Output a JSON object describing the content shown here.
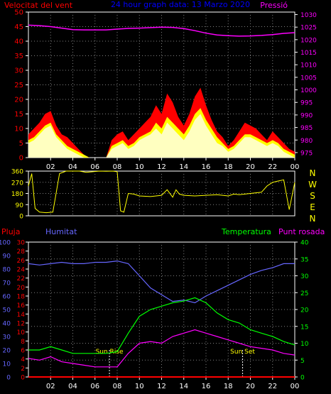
{
  "page": {
    "background": "#000000"
  },
  "chart_data": [
    {
      "type": "line",
      "title": "24 hour graph data: 13 Marzo 2020",
      "left_axis_label": "Velocitat del vent",
      "right_axis_label": "Pressió",
      "left_ticks": [
        "0",
        "5",
        "10",
        "15",
        "20",
        "25",
        "30",
        "35",
        "40",
        "45",
        "50"
      ],
      "right_ticks": [
        "975",
        "980",
        "985",
        "990",
        "995",
        "1000",
        "1005",
        "1010",
        "1015",
        "1020",
        "1025",
        "1030"
      ],
      "x_ticks": [
        "02",
        "04",
        "06",
        "08",
        "10",
        "12",
        "14",
        "16",
        "18",
        "20",
        "22",
        "00"
      ],
      "ylim_left": [
        0,
        50
      ],
      "ylim_right": [
        973,
        1031
      ],
      "xlim": [
        0,
        24
      ],
      "grid": true,
      "colors": {
        "pressure": "#ff00ff",
        "gust": "#ff0000",
        "average": "#ffff00",
        "speed": "#ffffc0",
        "left_axis": "#ff0000",
        "right_axis": "#ff00ff",
        "title": "#0000ff"
      },
      "series": [
        {
          "kind": "pressure",
          "x": [
            0,
            1,
            2,
            3,
            4,
            5,
            6,
            7,
            8,
            9,
            10,
            11,
            12,
            13,
            14,
            15,
            16,
            17,
            18,
            19,
            20,
            21,
            22,
            23,
            24
          ],
          "values": [
            1025.8,
            1025.6,
            1025.2,
            1024.6,
            1024.0,
            1023.9,
            1023.9,
            1023.9,
            1024.2,
            1024.5,
            1024.6,
            1024.8,
            1025.0,
            1024.9,
            1024.4,
            1023.6,
            1022.6,
            1021.9,
            1021.6,
            1021.4,
            1021.5,
            1021.7,
            1022.0,
            1022.5,
            1022.8
          ]
        },
        {
          "kind": "gust",
          "x": [
            0,
            0.5,
            1,
            1.5,
            2,
            2.5,
            3,
            3.5,
            4,
            4.5,
            5,
            5.5,
            6,
            6.5,
            7,
            7.5,
            8,
            8.5,
            9,
            9.5,
            10,
            10.5,
            11,
            11.5,
            12,
            12.5,
            13,
            13.5,
            14,
            14.5,
            15,
            15.5,
            16,
            16.5,
            17,
            17.5,
            18,
            18.5,
            19,
            19.5,
            20,
            20.5,
            21,
            21.5,
            22,
            22.5,
            23,
            23.5,
            24
          ],
          "values": [
            8,
            10,
            12,
            15,
            16,
            11,
            8,
            7,
            5,
            3,
            1,
            0,
            0,
            0,
            0,
            6,
            8,
            9,
            6,
            8,
            10,
            12,
            14,
            18,
            15,
            22,
            19,
            14,
            11,
            15,
            21,
            24,
            18,
            13,
            9,
            7,
            4,
            6,
            9,
            12,
            11,
            10,
            8,
            6,
            9,
            7,
            5,
            3,
            2
          ]
        },
        {
          "kind": "average",
          "x": [
            0,
            0.5,
            1,
            1.5,
            2,
            2.5,
            3,
            3.5,
            4,
            4.5,
            5,
            5.5,
            6,
            6.5,
            7,
            7.5,
            8,
            8.5,
            9,
            9.5,
            10,
            10.5,
            11,
            11.5,
            12,
            12.5,
            13,
            13.5,
            14,
            14.5,
            15,
            15.5,
            16,
            16.5,
            17,
            17.5,
            18,
            18.5,
            19,
            19.5,
            20,
            20.5,
            21,
            21.5,
            22,
            22.5,
            23,
            23.5,
            24
          ],
          "values": [
            6,
            7,
            9,
            11,
            12,
            8,
            6,
            4,
            3,
            2,
            1,
            0,
            0,
            0,
            0,
            4,
            5,
            6,
            4,
            5,
            7,
            8,
            9,
            12,
            10,
            14,
            12,
            10,
            8,
            11,
            15,
            17,
            13,
            10,
            7,
            5,
            3,
            4,
            6,
            8,
            8,
            7,
            6,
            5,
            6,
            5,
            3,
            2,
            1
          ]
        },
        {
          "kind": "speed",
          "x": [
            0,
            0.5,
            1,
            1.5,
            2,
            2.5,
            3,
            3.5,
            4,
            4.5,
            5,
            5.5,
            6,
            6.5,
            7,
            7.5,
            8,
            8.5,
            9,
            9.5,
            10,
            10.5,
            11,
            11.5,
            12,
            12.5,
            13,
            13.5,
            14,
            14.5,
            15,
            15.5,
            16,
            16.5,
            17,
            17.5,
            18,
            18.5,
            19,
            19.5,
            20,
            20.5,
            21,
            21.5,
            22,
            22.5,
            23,
            23.5,
            24
          ],
          "values": [
            5,
            6,
            8,
            10,
            11,
            7,
            5,
            3,
            2,
            1,
            0,
            0,
            0,
            0,
            0,
            3,
            4,
            5,
            3,
            4,
            6,
            7,
            8,
            10,
            8,
            12,
            10,
            8,
            6,
            9,
            13,
            15,
            11,
            8,
            5,
            4,
            2,
            3,
            5,
            7,
            7,
            6,
            5,
            4,
            5,
            4,
            2,
            1,
            0
          ]
        }
      ]
    },
    {
      "type": "line",
      "right_labels": [
        "N",
        "W",
        "S",
        "E",
        "N"
      ],
      "left_ticks": [
        "0",
        "90",
        "180",
        "270",
        "360"
      ],
      "ylim": [
        0,
        360
      ],
      "xlim": [
        0,
        24
      ],
      "grid": true,
      "colors": {
        "direction": "#ffff00",
        "axis": "#ffff00"
      },
      "series": [
        {
          "kind": "direction",
          "x": [
            0,
            0.3,
            0.6,
            1.0,
            1.6,
            2.2,
            2.8,
            3.4,
            4.0,
            4.6,
            5.2,
            5.8,
            6.4,
            7.0,
            7.6,
            8.0,
            8.3,
            8.6,
            9.0,
            9.5,
            10,
            11,
            12,
            12.5,
            13,
            13.3,
            13.6,
            14,
            15,
            16,
            17,
            18,
            18.5,
            19,
            20,
            21,
            21.5,
            22,
            22.5,
            23,
            23.5,
            24
          ],
          "values": [
            240,
            340,
            60,
            30,
            25,
            30,
            340,
            360,
            360,
            360,
            350,
            355,
            360,
            358,
            360,
            355,
            40,
            30,
            180,
            175,
            160,
            155,
            165,
            210,
            150,
            210,
            175,
            165,
            160,
            165,
            170,
            160,
            175,
            170,
            180,
            190,
            240,
            270,
            280,
            290,
            50,
            270
          ]
        }
      ]
    },
    {
      "type": "line",
      "left_axis_label": "Pluja",
      "left_axis_label2": "Humitat",
      "right_axis_label": "Temperatura",
      "right_axis_label2": "Punt rosada",
      "humidity_ticks": [
        "0",
        "10",
        "20",
        "30",
        "40",
        "50",
        "60",
        "70",
        "80",
        "90",
        "100"
      ],
      "rain_ticks": [
        "0",
        "2",
        "4",
        "6",
        "8",
        "10",
        "12",
        "14",
        "16",
        "18",
        "20",
        "22",
        "24",
        "26",
        "28",
        "30"
      ],
      "temp_ticks": [
        "0",
        "5",
        "10",
        "15",
        "20",
        "25",
        "30",
        "35",
        "40"
      ],
      "ylim_humidity": [
        0,
        100
      ],
      "ylim_rain": [
        0,
        30
      ],
      "ylim_temperature": [
        0,
        40
      ],
      "xlim": [
        0,
        24
      ],
      "grid": true,
      "annotations": [
        {
          "text": "Sun Rise",
          "x": 7.3
        },
        {
          "text": "Sun Set",
          "x": 19.3
        }
      ],
      "colors": {
        "humidity": "#6666ff",
        "temperature": "#00ff00",
        "dew_point": "#ff00ff",
        "rain": "#ff0000",
        "rain_axis": "#ff0000",
        "humidity_axis": "#6666ff",
        "temperature_axis": "#00ff00",
        "dew_axis": "#ff00ff"
      },
      "series": [
        {
          "kind": "humidity",
          "x": [
            0,
            1,
            2,
            3,
            4,
            5,
            6,
            7,
            8,
            9,
            10,
            11,
            12,
            13,
            14,
            15,
            16,
            17,
            18,
            19,
            20,
            21,
            22,
            23,
            24
          ],
          "values": [
            84,
            83,
            84,
            85,
            84,
            84,
            85,
            85,
            86,
            84,
            75,
            66,
            61,
            56,
            57,
            55,
            60,
            64,
            68,
            72,
            76,
            79,
            81,
            84,
            84
          ]
        },
        {
          "kind": "temperature",
          "x": [
            0,
            1,
            2,
            3,
            4,
            5,
            6,
            7,
            8,
            9,
            10,
            11,
            12,
            13,
            14,
            15,
            16,
            17,
            18,
            19,
            20,
            21,
            22,
            23,
            24
          ],
          "values": [
            8,
            8,
            9,
            8,
            7,
            7,
            7,
            7,
            7.5,
            13,
            18,
            20,
            21,
            22,
            22.5,
            23.5,
            22,
            19,
            17,
            16,
            14,
            13,
            12,
            10.5,
            9.5
          ]
        },
        {
          "kind": "dew_point",
          "x": [
            0,
            1,
            2,
            3,
            4,
            5,
            6,
            7,
            8,
            9,
            10,
            11,
            12,
            13,
            14,
            15,
            16,
            17,
            18,
            19,
            20,
            21,
            22,
            23,
            24
          ],
          "values": [
            5.5,
            5,
            6,
            4.5,
            4,
            3.5,
            3,
            3,
            3,
            7,
            10,
            10.5,
            10,
            12,
            13,
            14,
            13,
            12,
            11,
            10,
            9,
            8.5,
            8,
            7,
            6.5
          ]
        },
        {
          "kind": "rain",
          "x": [
            0,
            24
          ],
          "values": [
            0,
            0
          ]
        }
      ]
    }
  ]
}
